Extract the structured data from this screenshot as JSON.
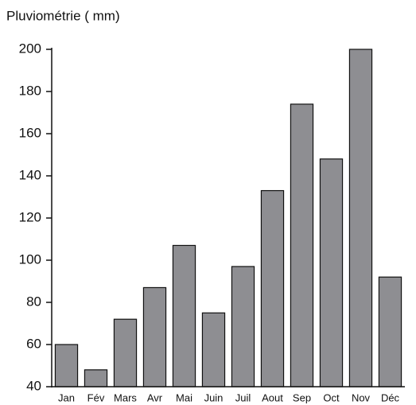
{
  "chart_data": {
    "type": "bar",
    "title": "Pluviométrie ( mm)",
    "categories": [
      "Jan",
      "Fév",
      "Mars",
      "Avr",
      "Mai",
      "Juin",
      "Juil",
      "Aout",
      "Sep",
      "Oct",
      "Nov",
      "Déc"
    ],
    "values": [
      60,
      48,
      72,
      87,
      107,
      75,
      97,
      133,
      174,
      148,
      200,
      92
    ],
    "color": "#8e8e92",
    "ylim": [
      40,
      200
    ],
    "yticks": [
      40,
      60,
      80,
      100,
      120,
      140,
      160,
      180,
      200
    ],
    "grid": false
  }
}
